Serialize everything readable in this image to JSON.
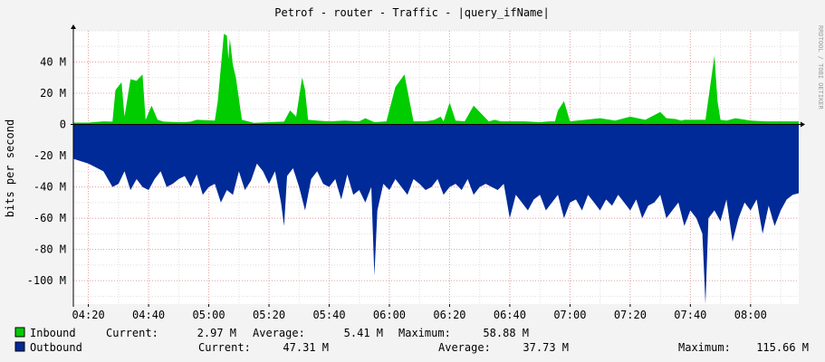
{
  "chart_data": {
    "type": "area",
    "title": "Petrof - router - Traffic - |query_ifName|",
    "ylabel": "bits per second",
    "watermark": "RRDTOOL / TOBI OETIKER",
    "ylim": [
      -115,
      60
    ],
    "y_ticks": [
      {
        "value": 40,
        "label": "40 M"
      },
      {
        "value": 20,
        "label": "20 M"
      },
      {
        "value": 0,
        "label": "0"
      },
      {
        "value": -20,
        "label": "-20 M"
      },
      {
        "value": -40,
        "label": "-40 M"
      },
      {
        "value": -60,
        "label": "-60 M"
      },
      {
        "value": -80,
        "label": "-80 M"
      },
      {
        "value": -100,
        "label": "-100 M"
      }
    ],
    "x_unit": "minutes",
    "xlim": [
      255,
      496
    ],
    "x_ticks": [
      {
        "value": 260,
        "label": "04:20"
      },
      {
        "value": 280,
        "label": "04:40"
      },
      {
        "value": 300,
        "label": "05:00"
      },
      {
        "value": 320,
        "label": "05:20"
      },
      {
        "value": 340,
        "label": "05:40"
      },
      {
        "value": 360,
        "label": "06:00"
      },
      {
        "value": 380,
        "label": "06:20"
      },
      {
        "value": 400,
        "label": "06:40"
      },
      {
        "value": 420,
        "label": "07:00"
      },
      {
        "value": 440,
        "label": "07:20"
      },
      {
        "value": 460,
        "label": "07:40"
      },
      {
        "value": 480,
        "label": "08:00"
      }
    ],
    "grid": true,
    "series": [
      {
        "name": "Inbound",
        "color": "#00cc00",
        "direction": "up",
        "x": [
          255,
          260,
          265,
          268,
          269,
          271,
          272,
          274,
          276,
          278,
          279,
          281,
          283,
          285,
          290,
          292,
          294,
          296,
          302,
          303,
          305,
          306,
          306.5,
          307,
          308,
          309,
          311,
          315,
          320,
          325,
          327,
          329,
          331,
          332,
          333,
          336,
          340,
          345,
          350,
          352,
          355,
          359,
          362,
          365,
          368,
          372,
          375,
          377,
          378,
          380,
          382,
          385,
          388,
          393,
          395,
          397,
          400,
          405,
          410,
          413,
          415,
          416,
          418,
          420,
          425,
          430,
          435,
          440,
          445,
          450,
          452,
          455,
          457,
          458,
          460,
          465,
          468,
          469,
          470,
          472,
          475,
          480,
          485,
          490,
          496
        ],
        "values": [
          1.2,
          1.2,
          2,
          1.8,
          22,
          27,
          5,
          29,
          28,
          32,
          3,
          12,
          3,
          1.8,
          1.5,
          1.5,
          1.8,
          3,
          2.5,
          15,
          58,
          57,
          42,
          55,
          38,
          30,
          3,
          1,
          1.5,
          1.8,
          9,
          5,
          30,
          22,
          3,
          2.5,
          2,
          2.5,
          2,
          4,
          1.5,
          2,
          24,
          32,
          2,
          2,
          3,
          5,
          2,
          14,
          2.5,
          2,
          12,
          2,
          3,
          2,
          2,
          2,
          1.5,
          2,
          2,
          9,
          15,
          2,
          3,
          4,
          2.5,
          5,
          3,
          8,
          4,
          3.5,
          2.5,
          3,
          3,
          3,
          44,
          15,
          3,
          2.5,
          4,
          2.5,
          2,
          2,
          2
        ]
      },
      {
        "name": "Outbound",
        "color": "#002a97",
        "direction": "down",
        "x": [
          255,
          260,
          265,
          268,
          270,
          272,
          274,
          276,
          278,
          280,
          282,
          284,
          286,
          288,
          290,
          292,
          294,
          296,
          298,
          300,
          302,
          304,
          306,
          308,
          310,
          312,
          314,
          316,
          318,
          320,
          322,
          324,
          325,
          326,
          328,
          330,
          332,
          334,
          336,
          338,
          340,
          342,
          344,
          346,
          348,
          350,
          352,
          354,
          355,
          356,
          358,
          360,
          362,
          364,
          366,
          368,
          370,
          372,
          374,
          376,
          378,
          380,
          382,
          384,
          386,
          388,
          390,
          392,
          394,
          396,
          398,
          400,
          402,
          404,
          406,
          408,
          410,
          412,
          414,
          416,
          418,
          420,
          422,
          424,
          426,
          428,
          430,
          432,
          434,
          436,
          438,
          440,
          442,
          444,
          446,
          448,
          450,
          452,
          454,
          456,
          458,
          460,
          462,
          464,
          465,
          466,
          468,
          470,
          472,
          474,
          476,
          478,
          480,
          482,
          484,
          486,
          488,
          490,
          492,
          494,
          496
        ],
        "values": [
          -22,
          -25,
          -30,
          -40,
          -38,
          -30,
          -42,
          -35,
          -40,
          -42,
          -35,
          -30,
          -40,
          -38,
          -35,
          -33,
          -40,
          -32,
          -45,
          -40,
          -38,
          -50,
          -42,
          -45,
          -30,
          -42,
          -36,
          -25,
          -30,
          -38,
          -30,
          -50,
          -65,
          -33,
          -28,
          -40,
          -55,
          -35,
          -30,
          -38,
          -40,
          -35,
          -48,
          -32,
          -45,
          -42,
          -50,
          -40,
          -97,
          -55,
          -38,
          -42,
          -35,
          -40,
          -45,
          -35,
          -38,
          -42,
          -40,
          -35,
          -45,
          -40,
          -38,
          -42,
          -35,
          -45,
          -40,
          -38,
          -40,
          -42,
          -38,
          -60,
          -45,
          -50,
          -55,
          -48,
          -45,
          -55,
          -50,
          -45,
          -60,
          -50,
          -48,
          -55,
          -45,
          -50,
          -55,
          -48,
          -52,
          -45,
          -50,
          -55,
          -48,
          -60,
          -52,
          -50,
          -45,
          -60,
          -55,
          -50,
          -65,
          -55,
          -60,
          -70,
          -115,
          -60,
          -55,
          -62,
          -48,
          -75,
          -60,
          -50,
          -55,
          -48,
          -70,
          -52,
          -65,
          -55,
          -48,
          -45,
          -44
        ]
      }
    ]
  },
  "legend": {
    "inbound": {
      "label": "Inbound",
      "current_label": "Current:",
      "current": "2.97 M",
      "average_label": "Average:",
      "average": "5.41 M",
      "maximum_label": "Maximum:",
      "maximum": "58.88 M"
    },
    "outbound": {
      "label": "Outbound",
      "current_label": "Current:",
      "current": "47.31 M",
      "average_label": "Average:",
      "average": "37.73 M",
      "maximum_label": "Maximum:",
      "maximum": "115.66 M"
    }
  }
}
